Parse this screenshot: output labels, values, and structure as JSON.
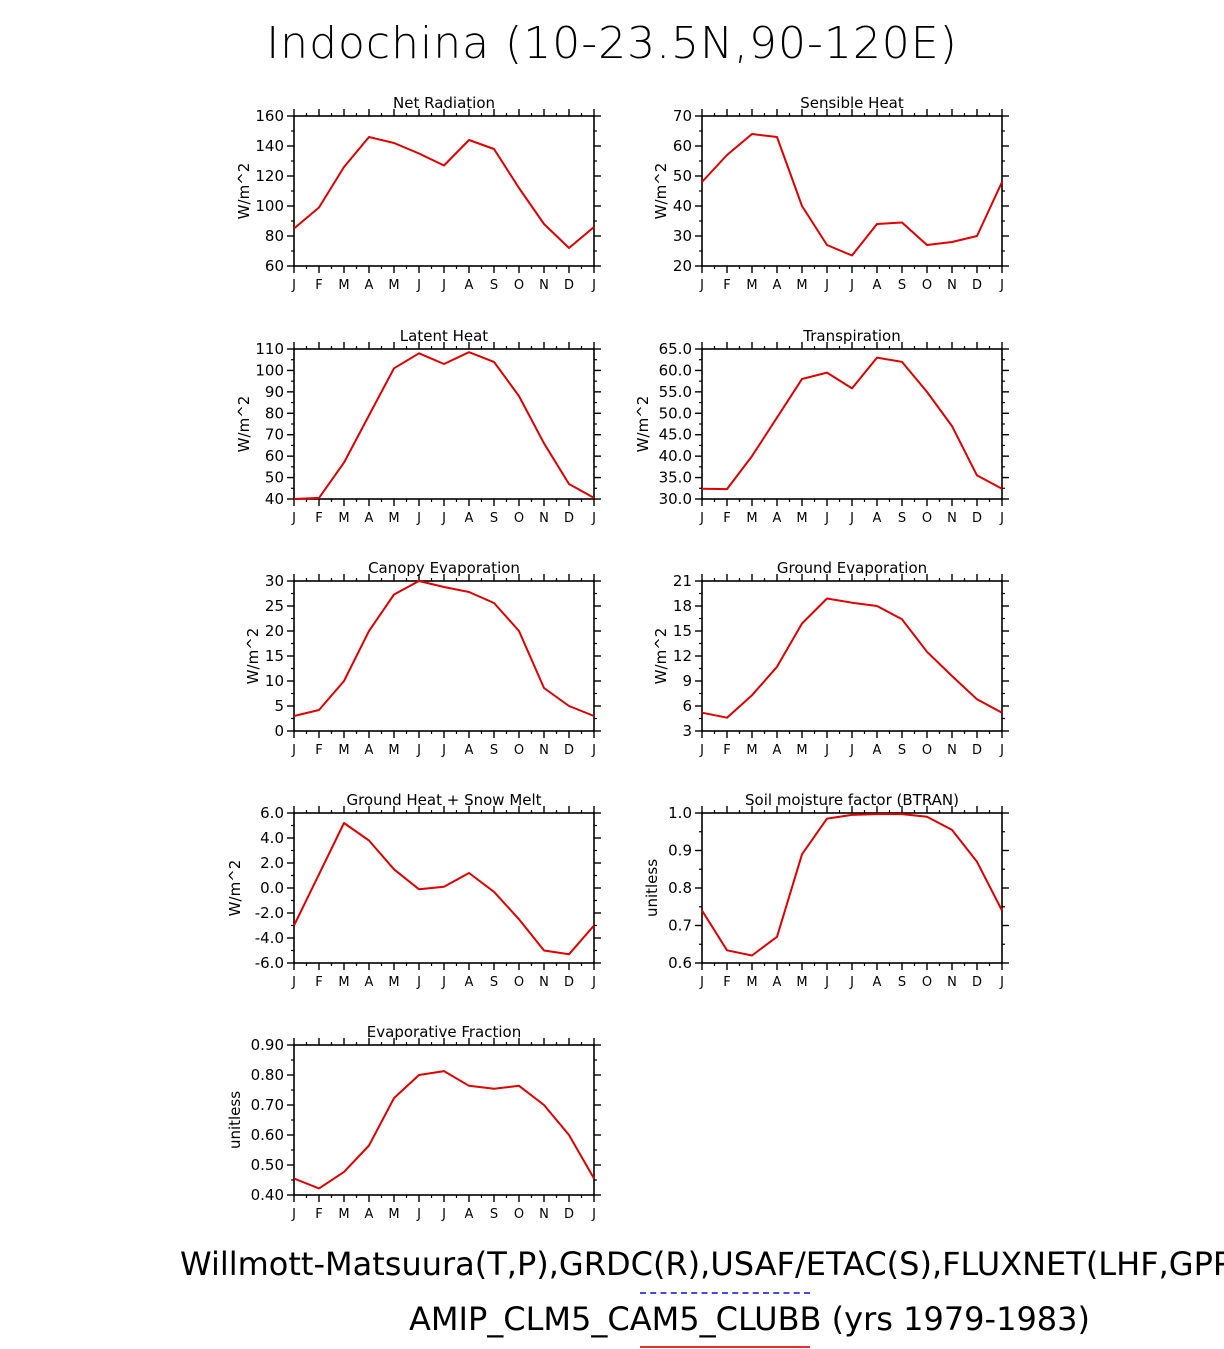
{
  "title": "Indochina (10-23.5N,90-120E)",
  "footer": {
    "line1": "Willmott-Matsuura(T,P),GRDC(R),USAF/ETAC(S),FLUXNET(LHF,GPP)",
    "line2": "AMIP_CLM5_CAM5_CLUBB (yrs 1979-1983)"
  },
  "colors": {
    "line": "#e00000",
    "axis": "#000000",
    "blue_dash": "#4a4ad8",
    "red_underline": "#e03030"
  },
  "chart_data": [
    {
      "type": "line",
      "title": "Net Radiation",
      "ylabel": "W/m^2",
      "x": [
        "J",
        "F",
        "M",
        "A",
        "M",
        "J",
        "J",
        "A",
        "S",
        "O",
        "N",
        "D",
        "J"
      ],
      "ylim": [
        60,
        160
      ],
      "yticks": [
        60,
        80,
        100,
        120,
        140,
        160
      ],
      "ytick_labels": [
        "60",
        "80",
        "100",
        "120",
        "140",
        "160"
      ],
      "values": [
        85,
        99,
        126,
        146,
        142,
        135,
        127,
        144,
        138,
        112,
        88,
        72,
        86
      ]
    },
    {
      "type": "line",
      "title": "Sensible Heat",
      "ylabel": "W/m^2",
      "x": [
        "J",
        "F",
        "M",
        "A",
        "M",
        "J",
        "J",
        "A",
        "S",
        "O",
        "N",
        "D",
        "J"
      ],
      "ylim": [
        20,
        70
      ],
      "yticks": [
        20,
        30,
        40,
        50,
        60,
        70
      ],
      "ytick_labels": [
        "20",
        "30",
        "40",
        "50",
        "60",
        "70"
      ],
      "values": [
        48,
        57,
        64,
        63,
        40,
        27,
        23.5,
        34,
        34.5,
        27,
        28,
        30,
        48
      ]
    },
    {
      "type": "line",
      "title": "Latent Heat",
      "ylabel": "W/m^2",
      "x": [
        "J",
        "F",
        "M",
        "A",
        "M",
        "J",
        "J",
        "A",
        "S",
        "O",
        "N",
        "D",
        "J"
      ],
      "ylim": [
        40,
        110
      ],
      "yticks": [
        40,
        50,
        60,
        70,
        80,
        90,
        100,
        110
      ],
      "ytick_labels": [
        "40",
        "50",
        "60",
        "70",
        "80",
        "90",
        "100",
        "110"
      ],
      "values": [
        40,
        40.5,
        57,
        79,
        101,
        108,
        103,
        108.5,
        104,
        88,
        66,
        47,
        40.5
      ]
    },
    {
      "type": "line",
      "title": "Transpiration",
      "ylabel": "W/m^2",
      "x": [
        "J",
        "F",
        "M",
        "A",
        "M",
        "J",
        "J",
        "A",
        "S",
        "O",
        "N",
        "D",
        "J"
      ],
      "ylim": [
        30,
        65
      ],
      "yticks": [
        30,
        35,
        40,
        45,
        50,
        55,
        60,
        65
      ],
      "ytick_labels": [
        "30.0",
        "35.0",
        "40.0",
        "45.0",
        "50.0",
        "55.0",
        "60.0",
        "65.0"
      ],
      "values": [
        32.4,
        32.3,
        40,
        49,
        58,
        59.5,
        55.8,
        63,
        62,
        55,
        47,
        35.5,
        32.4
      ]
    },
    {
      "type": "line",
      "title": "Canopy Evaporation",
      "ylabel": "W/m^2",
      "x": [
        "J",
        "F",
        "M",
        "A",
        "M",
        "J",
        "J",
        "A",
        "S",
        "O",
        "N",
        "D",
        "J"
      ],
      "ylim": [
        0,
        30
      ],
      "yticks": [
        0,
        5,
        10,
        15,
        20,
        25,
        30
      ],
      "ytick_labels": [
        "0",
        "5",
        "10",
        "15",
        "20",
        "25",
        "30"
      ],
      "values": [
        3,
        4.2,
        10,
        20,
        27.3,
        30,
        28.8,
        27.8,
        25.6,
        20,
        8.6,
        5,
        3
      ]
    },
    {
      "type": "line",
      "title": "Ground Evaporation",
      "ylabel": "W/m^2",
      "x": [
        "J",
        "F",
        "M",
        "A",
        "M",
        "J",
        "J",
        "A",
        "S",
        "O",
        "N",
        "D",
        "J"
      ],
      "ylim": [
        3,
        21
      ],
      "yticks": [
        3,
        6,
        9,
        12,
        15,
        18,
        21
      ],
      "ytick_labels": [
        "3",
        "6",
        "9",
        "12",
        "15",
        "18",
        "21"
      ],
      "values": [
        5.2,
        4.6,
        7.3,
        10.7,
        15.9,
        18.9,
        18.4,
        18,
        16.4,
        12.5,
        9.6,
        6.8,
        5.2
      ]
    },
    {
      "type": "line",
      "title": "Ground Heat + Snow Melt",
      "ylabel": "W/m^2",
      "x": [
        "J",
        "F",
        "M",
        "A",
        "M",
        "J",
        "J",
        "A",
        "S",
        "O",
        "N",
        "D",
        "J"
      ],
      "ylim": [
        -6,
        6
      ],
      "yticks": [
        -6,
        -4,
        -2,
        0,
        2,
        4,
        6
      ],
      "ytick_labels": [
        "-6.0",
        "-4.0",
        "-2.0",
        "0.0",
        "2.0",
        "4.0",
        "6.0"
      ],
      "values": [
        -3,
        1.1,
        5.2,
        3.8,
        1.5,
        -0.1,
        0.1,
        1.2,
        -0.3,
        -2.5,
        -5,
        -5.3,
        -3
      ]
    },
    {
      "type": "line",
      "title": "Soil moisture factor (BTRAN)",
      "ylabel": "unitless",
      "x": [
        "J",
        "F",
        "M",
        "A",
        "M",
        "J",
        "J",
        "A",
        "S",
        "O",
        "N",
        "D",
        "J"
      ],
      "ylim": [
        0.6,
        1.0
      ],
      "yticks": [
        0.6,
        0.7,
        0.8,
        0.9,
        1.0
      ],
      "ytick_labels": [
        "0.6",
        "0.7",
        "0.8",
        "0.9",
        "1.0"
      ],
      "values": [
        0.74,
        0.634,
        0.62,
        0.67,
        0.89,
        0.985,
        0.995,
        0.997,
        0.997,
        0.99,
        0.955,
        0.87,
        0.74
      ]
    },
    {
      "type": "line",
      "title": "Evaporative Fraction",
      "ylabel": "unitless",
      "x": [
        "J",
        "F",
        "M",
        "A",
        "M",
        "J",
        "J",
        "A",
        "S",
        "O",
        "N",
        "D",
        "J"
      ],
      "ylim": [
        0.4,
        0.9
      ],
      "yticks": [
        0.4,
        0.5,
        0.6,
        0.7,
        0.8,
        0.9
      ],
      "ytick_labels": [
        "0.40",
        "0.50",
        "0.60",
        "0.70",
        "0.80",
        "0.90"
      ],
      "values": [
        0.455,
        0.422,
        0.477,
        0.565,
        0.723,
        0.8,
        0.813,
        0.764,
        0.754,
        0.764,
        0.7,
        0.6,
        0.455
      ]
    }
  ]
}
